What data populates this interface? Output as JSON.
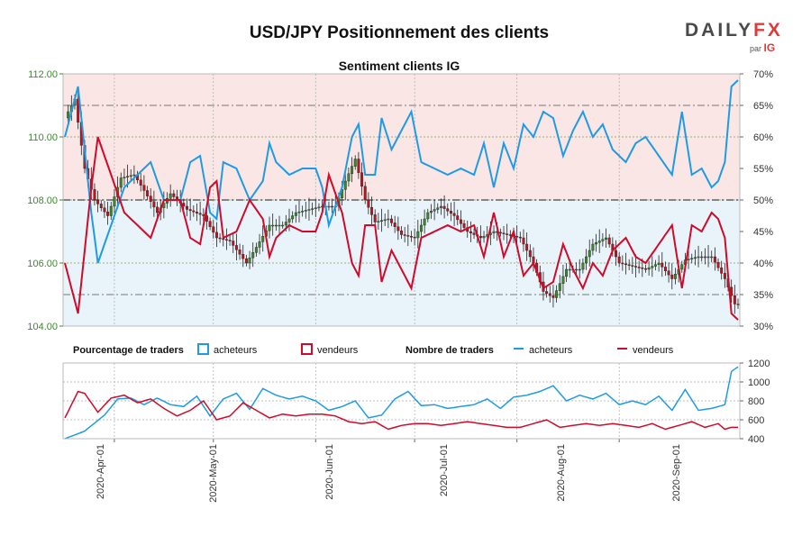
{
  "chart_data": {
    "type": "line",
    "title": "USD/JPY Positionnement des clients",
    "subtitle": "Sentiment clients IG",
    "price_axis": {
      "ylim": [
        104.0,
        112.0
      ],
      "ticks": [
        "104.00",
        "106.00",
        "108.00",
        "110.00",
        "112.00"
      ]
    },
    "percent_axis": {
      "ylim": [
        30,
        70
      ],
      "ticks": [
        "30%",
        "35%",
        "40%",
        "45%",
        "50%",
        "55%",
        "60%",
        "65%",
        "70%"
      ]
    },
    "count_axis": {
      "ylim": [
        400,
        1200
      ],
      "ticks": [
        "400",
        "600",
        "800",
        "1000",
        "1200"
      ]
    },
    "x_axis": {
      "ticks": [
        "2020-Apr-01",
        "2020-May-01",
        "2020-Jun-01",
        "2020-Jul-01",
        "2020-Aug-01",
        "2020-Sep-01"
      ]
    },
    "legend_top": {
      "pct_title": "Pourcentage de traders",
      "pct_buy": "acheteurs",
      "pct_sell": "vendeurs",
      "count_title": "Nombre de traders",
      "count_buy": "acheteurs",
      "count_sell": "vendeurs"
    },
    "colors": {
      "buy": "#1f9be6",
      "sell": "#d10a2a",
      "candle_up": "#3a8a2a",
      "candle_down": "#c1121f",
      "price_axis": "#3a8a2a",
      "bull_zone": "#e9f3fa",
      "bear_zone": "#fbe6e6"
    },
    "price_keypoints": [
      [
        0,
        110.6
      ],
      [
        3,
        111.2
      ],
      [
        6,
        109.0
      ],
      [
        9,
        108.0
      ],
      [
        13,
        107.5
      ],
      [
        17,
        108.7
      ],
      [
        21,
        108.8
      ],
      [
        24,
        108.3
      ],
      [
        28,
        107.6
      ],
      [
        32,
        108.2
      ],
      [
        37,
        107.7
      ],
      [
        42,
        107.5
      ],
      [
        46,
        106.8
      ],
      [
        50,
        106.7
      ],
      [
        55,
        106.0
      ],
      [
        58,
        106.5
      ],
      [
        62,
        107.2
      ],
      [
        66,
        107.2
      ],
      [
        70,
        107.6
      ],
      [
        74,
        107.7
      ],
      [
        78,
        107.8
      ],
      [
        82,
        107.8
      ],
      [
        85,
        108.6
      ],
      [
        88,
        109.3
      ],
      [
        91,
        108.0
      ],
      [
        94,
        107.3
      ],
      [
        98,
        107.4
      ],
      [
        102,
        106.9
      ],
      [
        106,
        106.8
      ],
      [
        110,
        107.6
      ],
      [
        114,
        107.8
      ],
      [
        118,
        107.5
      ],
      [
        122,
        107.0
      ],
      [
        126,
        106.8
      ],
      [
        130,
        107.0
      ],
      [
        134,
        106.9
      ],
      [
        138,
        106.8
      ],
      [
        142,
        106.0
      ],
      [
        145,
        105.1
      ],
      [
        148,
        104.9
      ],
      [
        152,
        105.8
      ],
      [
        156,
        105.8
      ],
      [
        160,
        106.6
      ],
      [
        164,
        106.8
      ],
      [
        168,
        106.0
      ],
      [
        172,
        105.9
      ],
      [
        176,
        105.8
      ],
      [
        180,
        106.0
      ],
      [
        184,
        105.5
      ],
      [
        188,
        106.1
      ],
      [
        192,
        106.2
      ],
      [
        196,
        106.2
      ],
      [
        200,
        105.5
      ],
      [
        203,
        104.7
      ]
    ],
    "pct_buy_keypoints": [
      [
        0,
        60
      ],
      [
        4,
        68
      ],
      [
        8,
        48
      ],
      [
        10,
        40
      ],
      [
        14,
        46
      ],
      [
        18,
        52
      ],
      [
        22,
        54
      ],
      [
        26,
        56
      ],
      [
        30,
        50
      ],
      [
        35,
        50
      ],
      [
        38,
        56
      ],
      [
        41,
        57
      ],
      [
        44,
        48
      ],
      [
        46,
        47
      ],
      [
        48,
        56
      ],
      [
        52,
        55
      ],
      [
        56,
        50
      ],
      [
        60,
        53
      ],
      [
        62,
        59
      ],
      [
        64,
        56
      ],
      [
        68,
        54
      ],
      [
        72,
        55
      ],
      [
        76,
        55
      ],
      [
        78,
        52
      ],
      [
        80,
        46
      ],
      [
        84,
        52
      ],
      [
        87,
        60
      ],
      [
        89,
        62
      ],
      [
        91,
        54
      ],
      [
        94,
        54
      ],
      [
        96,
        63
      ],
      [
        99,
        58
      ],
      [
        102,
        61
      ],
      [
        105,
        64
      ],
      [
        108,
        56
      ],
      [
        112,
        55
      ],
      [
        116,
        54
      ],
      [
        120,
        55
      ],
      [
        124,
        54
      ],
      [
        127,
        59
      ],
      [
        130,
        52
      ],
      [
        133,
        59
      ],
      [
        136,
        55
      ],
      [
        139,
        62
      ],
      [
        142,
        60
      ],
      [
        145,
        64
      ],
      [
        148,
        63
      ],
      [
        151,
        57
      ],
      [
        154,
        61
      ],
      [
        157,
        64
      ],
      [
        160,
        60
      ],
      [
        163,
        62
      ],
      [
        166,
        58
      ],
      [
        170,
        56
      ],
      [
        173,
        59
      ],
      [
        176,
        60
      ],
      [
        180,
        57
      ],
      [
        184,
        54
      ],
      [
        187,
        64
      ],
      [
        190,
        54
      ],
      [
        193,
        55
      ],
      [
        196,
        52
      ],
      [
        198,
        53
      ],
      [
        200,
        56
      ],
      [
        202,
        68
      ],
      [
        204,
        69
      ]
    ],
    "buyer_counts_keypoints": [
      [
        0,
        400
      ],
      [
        6,
        480
      ],
      [
        12,
        650
      ],
      [
        16,
        820
      ],
      [
        20,
        830
      ],
      [
        24,
        760
      ],
      [
        28,
        830
      ],
      [
        32,
        760
      ],
      [
        36,
        740
      ],
      [
        40,
        850
      ],
      [
        44,
        640
      ],
      [
        48,
        820
      ],
      [
        52,
        880
      ],
      [
        56,
        710
      ],
      [
        60,
        930
      ],
      [
        64,
        860
      ],
      [
        68,
        820
      ],
      [
        72,
        850
      ],
      [
        76,
        800
      ],
      [
        80,
        700
      ],
      [
        84,
        740
      ],
      [
        88,
        800
      ],
      [
        92,
        620
      ],
      [
        96,
        650
      ],
      [
        100,
        820
      ],
      [
        104,
        900
      ],
      [
        108,
        750
      ],
      [
        112,
        760
      ],
      [
        116,
        720
      ],
      [
        120,
        740
      ],
      [
        124,
        760
      ],
      [
        128,
        820
      ],
      [
        132,
        720
      ],
      [
        136,
        840
      ],
      [
        140,
        860
      ],
      [
        144,
        900
      ],
      [
        148,
        960
      ],
      [
        152,
        800
      ],
      [
        156,
        860
      ],
      [
        160,
        820
      ],
      [
        164,
        880
      ],
      [
        168,
        760
      ],
      [
        172,
        800
      ],
      [
        176,
        760
      ],
      [
        180,
        850
      ],
      [
        184,
        700
      ],
      [
        188,
        920
      ],
      [
        192,
        700
      ],
      [
        196,
        720
      ],
      [
        200,
        760
      ],
      [
        202,
        1110
      ],
      [
        204,
        1160
      ]
    ],
    "seller_counts_keypoints": [
      [
        0,
        620
      ],
      [
        4,
        900
      ],
      [
        6,
        880
      ],
      [
        10,
        680
      ],
      [
        14,
        830
      ],
      [
        18,
        860
      ],
      [
        22,
        780
      ],
      [
        26,
        820
      ],
      [
        30,
        720
      ],
      [
        34,
        640
      ],
      [
        38,
        700
      ],
      [
        42,
        800
      ],
      [
        46,
        600
      ],
      [
        50,
        640
      ],
      [
        54,
        780
      ],
      [
        58,
        700
      ],
      [
        62,
        620
      ],
      [
        66,
        660
      ],
      [
        70,
        640
      ],
      [
        74,
        660
      ],
      [
        78,
        660
      ],
      [
        82,
        640
      ],
      [
        86,
        580
      ],
      [
        90,
        560
      ],
      [
        94,
        580
      ],
      [
        98,
        500
      ],
      [
        102,
        540
      ],
      [
        106,
        560
      ],
      [
        110,
        560
      ],
      [
        114,
        540
      ],
      [
        118,
        560
      ],
      [
        122,
        580
      ],
      [
        126,
        560
      ],
      [
        130,
        540
      ],
      [
        134,
        520
      ],
      [
        138,
        520
      ],
      [
        142,
        560
      ],
      [
        146,
        600
      ],
      [
        150,
        520
      ],
      [
        154,
        540
      ],
      [
        158,
        560
      ],
      [
        162,
        540
      ],
      [
        166,
        560
      ],
      [
        170,
        540
      ],
      [
        174,
        520
      ],
      [
        178,
        560
      ],
      [
        182,
        500
      ],
      [
        186,
        540
      ],
      [
        190,
        580
      ],
      [
        194,
        520
      ],
      [
        198,
        560
      ],
      [
        200,
        500
      ],
      [
        202,
        520
      ],
      [
        204,
        520
      ]
    ]
  },
  "brand": {
    "name_main": "DAILY",
    "name_accent": "FX",
    "sub_prefix": "par",
    "sub_brand": "IG"
  }
}
